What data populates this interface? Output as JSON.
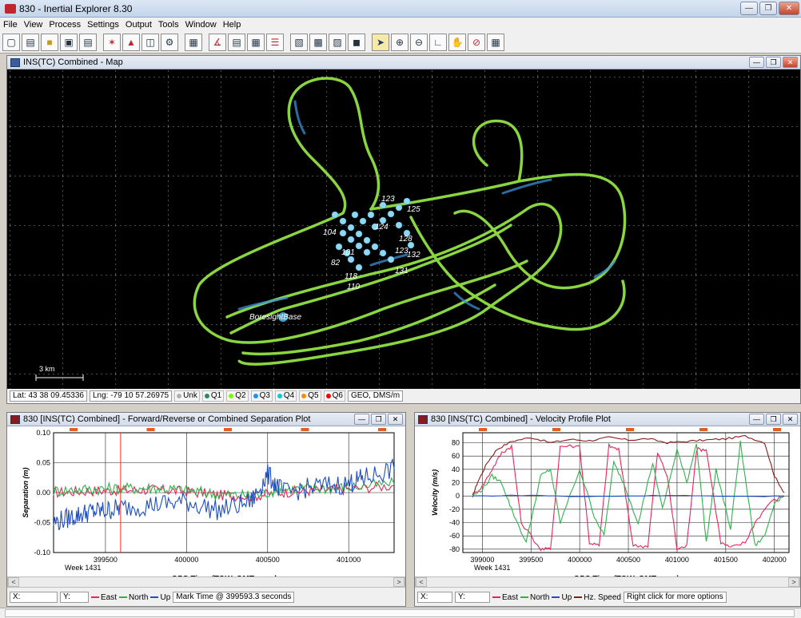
{
  "window": {
    "title": "830 - Inertial Explorer 8.30"
  },
  "menu": [
    "File",
    "View",
    "Process",
    "Settings",
    "Output",
    "Tools",
    "Window",
    "Help"
  ],
  "toolbar_icons": [
    "new-icon",
    "open-icon",
    "open-folder-icon",
    "save-icon",
    "print-icon",
    "process-gnss-icon",
    "process-ins-icon",
    "combine-icon",
    "engine-icon",
    "map-icon",
    "plot-icon",
    "chart-icon",
    "table-icon",
    "list-icon",
    "graph-icon",
    "grid-icon",
    "export-icon",
    "output-icon",
    "pointer-icon",
    "zoom-in-icon",
    "zoom-out-icon",
    "measure-icon",
    "pan-icon",
    "stop-icon",
    "calculator-icon"
  ],
  "map_window": {
    "title": "INS(TC) Combined - Map",
    "base_label": "BoresightBase",
    "scale_label": "3 km",
    "epoch_labels": [
      "123",
      "125",
      "104",
      "124",
      "128",
      "123",
      "132",
      "131",
      "118",
      "110",
      "82",
      "101"
    ],
    "status": {
      "lat": "Lat: 43 38 09.45336",
      "lng": "Lng: -79 10 57.26975",
      "quality": [
        "Unk",
        "Q1",
        "Q2",
        "Q3",
        "Q4",
        "Q5",
        "Q6"
      ],
      "quality_colors": [
        "#b0b0b0",
        "#2e8b57",
        "#7cfc00",
        "#1e90ff",
        "#00ced1",
        "#ff8c00",
        "#ff0000"
      ],
      "projection": "GEO, DMS/m"
    }
  },
  "sep_plot": {
    "title": "830 [INS(TC) Combined] - Forward/Reverse or Combined Separation Plot",
    "ylabel": "Separation (m)",
    "xlabel": "GPS Time (TOW, GMT zone)",
    "week_label": "Week 1431",
    "status": {
      "x": "X:",
      "y": "Y:",
      "legend": [
        "East",
        "North",
        "Up"
      ],
      "mark": "Mark Time @ 399593.3 seconds"
    }
  },
  "vel_plot": {
    "title": "830 [INS(TC) Combined] - Velocity Profile Plot",
    "ylabel": "Velocity (m/s)",
    "xlabel": "GPS Time (TOW, GMT zone)",
    "week_label": "Week 1431",
    "status": {
      "x": "X:",
      "y": "Y:",
      "legend": [
        "East",
        "North",
        "Up",
        "Hz. Speed"
      ],
      "hint": "Right click for more options"
    }
  },
  "colors": {
    "east": "#e8245a",
    "north": "#2fb24a",
    "up": "#1f4fbf",
    "hz": "#8b1a1a",
    "mark": "#ff3333"
  },
  "chart_data": [
    {
      "type": "line",
      "title": "830 [INS(TC) Combined] - Forward/Reverse or Combined Separation Plot",
      "xlabel": "GPS Time (TOW, GMT zone)",
      "ylabel": "Separation (m)",
      "xlim": [
        399180,
        401280
      ],
      "ylim": [
        -0.1,
        0.1
      ],
      "xticks": [
        399500,
        400000,
        400500,
        401000
      ],
      "yticks": [
        -0.1,
        -0.05,
        0.0,
        0.05,
        0.1
      ],
      "ytick_labels": [
        "-0.10",
        "-0.05",
        "0.00",
        "0.05",
        "0.10"
      ],
      "grid": true,
      "mark_time": 399593.3,
      "series": [
        {
          "name": "East",
          "x": [
            399180,
            399400,
            399600,
            399800,
            400000,
            400200,
            400400,
            400600,
            400800,
            401000,
            401280
          ],
          "y": [
            0.0,
            0.003,
            0.004,
            0.005,
            0.002,
            -0.004,
            -0.006,
            0.001,
            0.004,
            0.006,
            0.012
          ]
        },
        {
          "name": "North",
          "x": [
            399180,
            399400,
            399600,
            399800,
            400000,
            400200,
            400400,
            400600,
            400800,
            401000,
            401280
          ],
          "y": [
            0.003,
            0.006,
            0.007,
            0.008,
            0.004,
            -0.003,
            -0.005,
            0.006,
            0.007,
            0.009,
            0.015
          ]
        },
        {
          "name": "Up",
          "x": [
            399180,
            399300,
            399400,
            399500,
            399600,
            399800,
            400000,
            400200,
            400400,
            400500,
            400600,
            400800,
            401000,
            401100,
            401280
          ],
          "y": [
            -0.05,
            -0.04,
            -0.032,
            -0.03,
            -0.025,
            -0.02,
            -0.015,
            -0.03,
            -0.015,
            0.03,
            0.0,
            0.01,
            0.015,
            0.025,
            0.04
          ]
        }
      ]
    },
    {
      "type": "line",
      "title": "830 [INS(TC) Combined] - Velocity Profile Plot",
      "xlabel": "GPS Time (TOW, GMT zone)",
      "ylabel": "Velocity (m/s)",
      "xlim": [
        398800,
        402150
      ],
      "ylim": [
        -85,
        95
      ],
      "xticks": [
        399000,
        399500,
        400000,
        400500,
        401000,
        401500,
        402000
      ],
      "yticks": [
        -80,
        -60,
        -40,
        -20,
        0,
        20,
        40,
        60,
        80
      ],
      "grid": true,
      "series": [
        {
          "name": "Hz. Speed",
          "x": [
            398900,
            398950,
            399050,
            399150,
            399300,
            399500,
            399700,
            399900,
            400100,
            400300,
            400500,
            400700,
            400900,
            401100,
            401300,
            401500,
            401700,
            401900,
            402000,
            402100
          ],
          "y": [
            0,
            20,
            50,
            70,
            82,
            88,
            80,
            85,
            83,
            88,
            84,
            86,
            80,
            82,
            84,
            86,
            90,
            80,
            30,
            5
          ]
        },
        {
          "name": "East",
          "x": [
            398900,
            399000,
            399100,
            399200,
            399300,
            399400,
            399600,
            399700,
            399800,
            400000,
            400100,
            400200,
            400300,
            400400,
            400550,
            400700,
            400800,
            400900,
            401000,
            401100,
            401200,
            401300,
            401450,
            401550,
            401700,
            401800,
            401950,
            402100
          ],
          "y": [
            0,
            15,
            40,
            65,
            75,
            -40,
            -80,
            -80,
            75,
            75,
            -70,
            -75,
            75,
            70,
            -75,
            -75,
            65,
            30,
            -80,
            -75,
            70,
            70,
            -70,
            -78,
            -70,
            -40,
            -10,
            0
          ]
        },
        {
          "name": "North",
          "x": [
            398900,
            399000,
            399100,
            399200,
            399300,
            399450,
            399600,
            399700,
            399800,
            400000,
            400150,
            400250,
            400350,
            400450,
            400600,
            400750,
            400850,
            401000,
            401100,
            401200,
            401300,
            401400,
            401550,
            401650,
            401800,
            401900,
            402000,
            402100
          ],
          "y": [
            0,
            10,
            30,
            20,
            -20,
            -70,
            30,
            40,
            -40,
            40,
            -30,
            -60,
            50,
            20,
            -40,
            50,
            -20,
            70,
            20,
            80,
            -70,
            40,
            -50,
            80,
            -75,
            -60,
            -10,
            0
          ]
        },
        {
          "name": "Up",
          "x": [
            398900,
            399500,
            400000,
            400500,
            401000,
            401500,
            402100
          ],
          "y": [
            0,
            1,
            -1,
            0,
            1,
            -1,
            0
          ]
        }
      ]
    }
  ]
}
